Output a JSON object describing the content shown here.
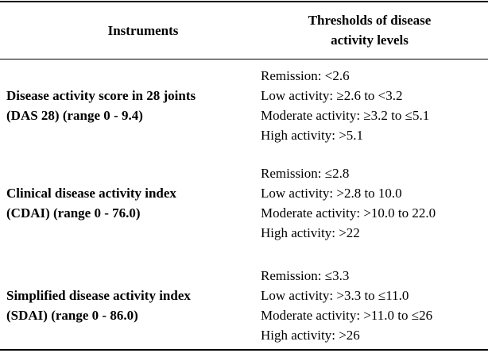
{
  "table": {
    "header": [
      [
        "Instruments"
      ],
      [
        "Thresholds of disease",
        "activity levels"
      ]
    ],
    "rows": [
      [
        [
          "Disease activity score in 28 joints",
          "(DAS 28) (range 0 - 9.4)"
        ],
        [
          "Remission: <2.6",
          "Low activity: ≥2.6 to <3.2",
          "Moderate activity: ≥3.2 to ≤5.1",
          "High activity: >5.1"
        ]
      ],
      [
        [
          "Clinical disease activity index",
          "(CDAI) (range 0 - 76.0)"
        ],
        [
          "Remission: ≤2.8",
          "Low activity: >2.8 to 10.0",
          "Moderate activity: >10.0 to 22.0",
          "High activity: >22"
        ]
      ],
      [
        [
          "Simplified disease activity index",
          "(SDAI) (range 0 - 86.0)"
        ],
        [
          "Remission: ≤3.3",
          "Low activity: >3.3 to ≤11.0",
          "Moderate activity: >11.0 to ≤26",
          "High activity: >26"
        ]
      ]
    ]
  }
}
